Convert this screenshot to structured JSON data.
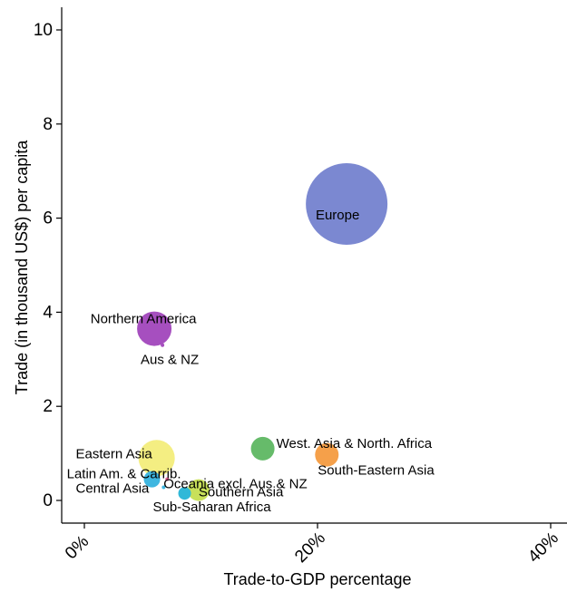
{
  "chart_data": {
    "type": "scatter",
    "subtype": "bubble",
    "title": "",
    "xlabel": "Trade-to-GDP percentage",
    "ylabel": "Trade (in thousand US$) per capita",
    "xlim": [
      -2,
      41
    ],
    "ylim": [
      -0.5,
      10.5
    ],
    "x_ticks": [
      0,
      20,
      40
    ],
    "x_tick_labels": [
      "0%",
      "20%",
      "40%"
    ],
    "y_ticks": [
      0,
      2,
      4,
      6,
      8,
      10
    ],
    "y_tick_labels": [
      "0",
      "2",
      "4",
      "6",
      "8",
      "10"
    ],
    "grid": false,
    "legend": "none",
    "points": [
      {
        "label": "Europe",
        "x": 22.5,
        "y": 6.3,
        "size": 45,
        "color": "#7b88d1"
      },
      {
        "label": "Northern America",
        "x": 6.0,
        "y": 3.65,
        "size": 19,
        "color": "#a64fbf"
      },
      {
        "label": "Aus & NZ",
        "x": 6.7,
        "y": 3.3,
        "size": 2,
        "color": "#a64fbf"
      },
      {
        "label": "West. Asia & North. Africa",
        "x": 15.3,
        "y": 1.1,
        "size": 13,
        "color": "#66bb6a"
      },
      {
        "label": "South-Eastern Asia",
        "x": 20.8,
        "y": 0.97,
        "size": 13,
        "color": "#f5a04a"
      },
      {
        "label": "Eastern Asia",
        "x": 6.2,
        "y": 0.9,
        "size": 20,
        "color": "#f4ee82"
      },
      {
        "label": "Oceania excl. Aus & NZ",
        "x": 7.1,
        "y": 0.45,
        "size": 2,
        "color": "#e06090"
      },
      {
        "label": "Latin Am. & Carrib.",
        "x": 5.8,
        "y": 0.45,
        "size": 9,
        "color": "#3fb6e0"
      },
      {
        "label": "Central Asia",
        "x": 6.8,
        "y": 0.28,
        "size": 2,
        "color": "#3fb6e0"
      },
      {
        "label": "Southern Asia",
        "x": 9.8,
        "y": 0.22,
        "size": 12,
        "color": "#c8e05a"
      },
      {
        "label": "Sub-Saharan Africa",
        "x": 8.6,
        "y": 0.15,
        "size": 7,
        "color": "#30b8d8"
      }
    ]
  }
}
